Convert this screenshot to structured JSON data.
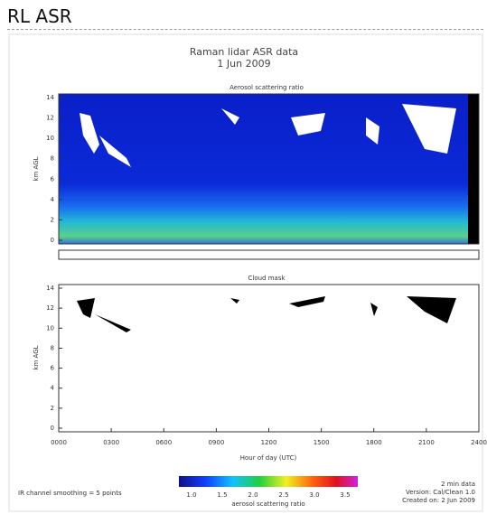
{
  "header": {
    "title": "RL ASR"
  },
  "figure": {
    "title": "Raman lidar ASR data",
    "date": "1 Jun 2009",
    "panels": [
      {
        "title": "Aerosol scattering ratio",
        "ylabel": "km AGL",
        "yticks": [
          "0",
          "2",
          "4",
          "6",
          "8",
          "10",
          "12",
          "14"
        ]
      },
      {
        "title": "Cloud mask",
        "ylabel": "km AGL",
        "yticks": [
          "0",
          "2",
          "4",
          "6",
          "8",
          "10",
          "12",
          "14"
        ],
        "xlabel": "Hour of day (UTC)",
        "xticks": [
          "0000",
          "0300",
          "0600",
          "0900",
          "1200",
          "1500",
          "1800",
          "2100",
          "2400"
        ]
      }
    ],
    "colorbar": {
      "ticks": [
        "1.0",
        "1.5",
        "2.0",
        "2.5",
        "3.0",
        "3.5"
      ],
      "label": "aerosol scattering ratio"
    },
    "notes": {
      "left": "IR channel smoothing = 5 points",
      "right": [
        "2 min data",
        "Version: Cal/Clean 1.0",
        "Created on: 2 Jun 2009"
      ]
    }
  }
}
